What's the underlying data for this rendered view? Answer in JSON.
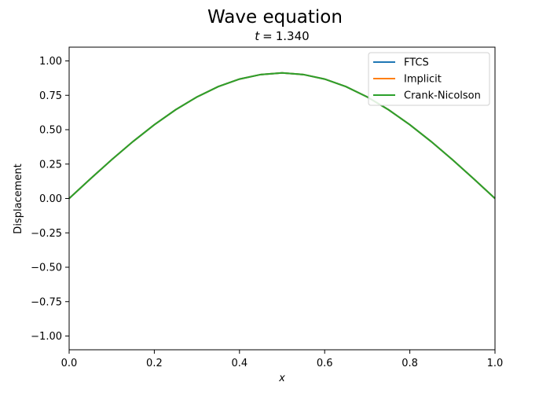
{
  "chart_data": {
    "type": "line",
    "suptitle": "Wave equation",
    "title": {
      "variable": "t",
      "operator": "=",
      "value": "1.340"
    },
    "xlabel": "x",
    "ylabel": "Displacement",
    "xlim": [
      0.0,
      1.0
    ],
    "ylim": [
      -1.1,
      1.1
    ],
    "xticks": [
      0.0,
      0.2,
      0.4,
      0.6,
      0.8,
      1.0
    ],
    "xtick_labels": [
      "0.0",
      "0.2",
      "0.4",
      "0.6",
      "0.8",
      "1.0"
    ],
    "yticks": [
      1.0,
      0.75,
      0.5,
      0.25,
      0.0,
      -0.25,
      -0.5,
      -0.75,
      -1.0
    ],
    "ytick_labels": [
      "1.00",
      "0.75",
      "0.50",
      "0.25",
      "0.00",
      "−0.25",
      "−0.50",
      "−0.75",
      "−1.00"
    ],
    "grid": false,
    "legend_position": "top-right",
    "x": [
      0.0,
      0.05,
      0.1,
      0.15,
      0.2,
      0.25,
      0.3,
      0.35,
      0.4,
      0.45,
      0.5,
      0.55,
      0.6,
      0.65,
      0.7,
      0.75,
      0.8,
      0.85,
      0.9,
      0.95,
      1.0
    ],
    "series": [
      {
        "name": "FTCS",
        "color": "#1f77b4",
        "values": [
          0.0,
          0.143,
          0.282,
          0.414,
          0.536,
          0.645,
          0.738,
          0.813,
          0.868,
          0.901,
          0.913,
          0.901,
          0.868,
          0.813,
          0.738,
          0.645,
          0.536,
          0.414,
          0.282,
          0.143,
          0.0
        ]
      },
      {
        "name": "Implicit",
        "color": "#ff7f0e",
        "values": [
          0.0,
          0.143,
          0.282,
          0.414,
          0.536,
          0.645,
          0.738,
          0.813,
          0.868,
          0.901,
          0.913,
          0.901,
          0.868,
          0.813,
          0.738,
          0.645,
          0.536,
          0.414,
          0.282,
          0.143,
          0.0
        ]
      },
      {
        "name": "Crank-Nicolson",
        "color": "#2ca02c",
        "values": [
          0.0,
          0.143,
          0.282,
          0.414,
          0.536,
          0.645,
          0.738,
          0.813,
          0.868,
          0.901,
          0.913,
          0.901,
          0.868,
          0.813,
          0.738,
          0.645,
          0.536,
          0.414,
          0.282,
          0.143,
          0.0
        ]
      }
    ]
  }
}
